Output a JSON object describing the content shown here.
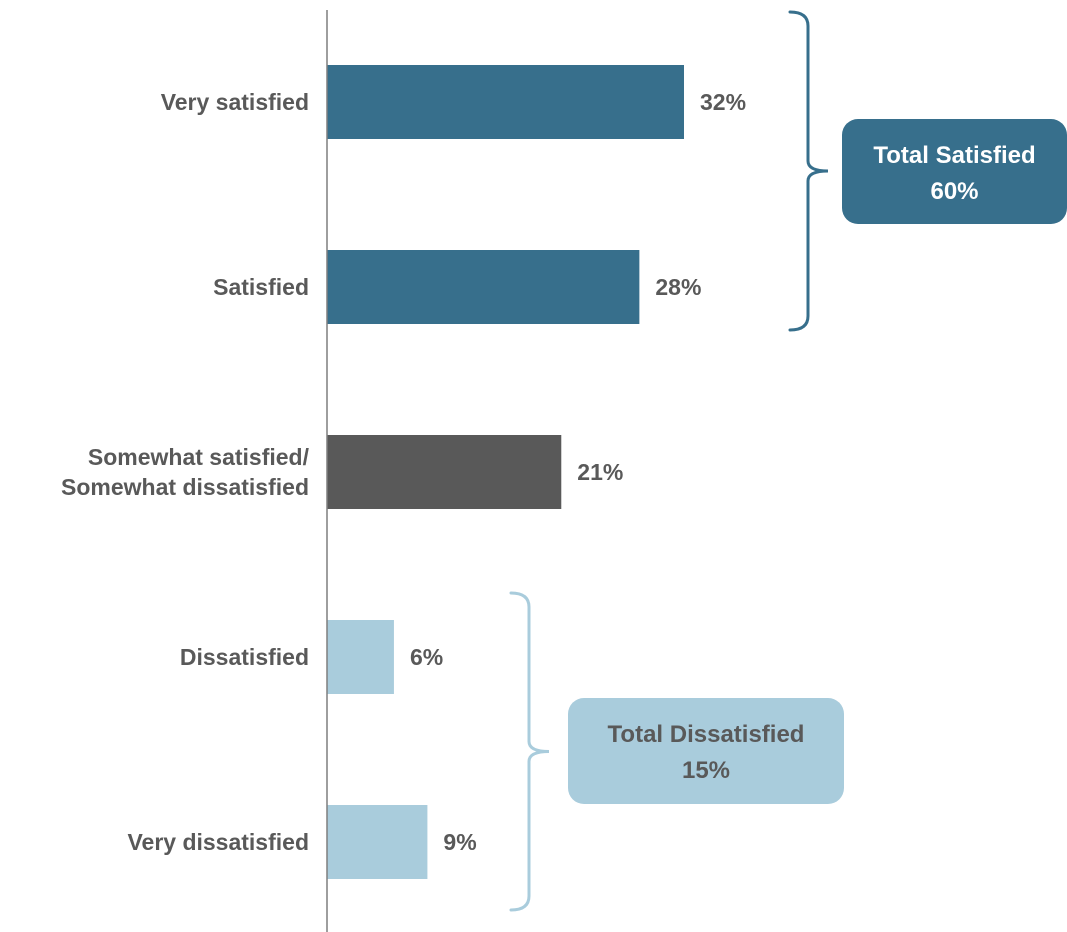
{
  "chart_data": {
    "type": "bar",
    "orientation": "horizontal",
    "categories": [
      [
        "Very satisfied"
      ],
      [
        "Satisfied"
      ],
      [
        "Somewhat satisfied/",
        "Somewhat dissatisfied"
      ],
      [
        "Dissatisfied"
      ],
      [
        "Very dissatisfied"
      ]
    ],
    "values": [
      32,
      28,
      21,
      6,
      9
    ],
    "value_labels": [
      "32%",
      "28%",
      "21%",
      "6%",
      "9%"
    ],
    "bar_colors": [
      "#376F8C",
      "#376F8C",
      "#595959",
      "#A9CCDC",
      "#A9CCDC"
    ],
    "xlim": [
      0,
      60
    ],
    "grid": false,
    "groups": [
      {
        "label_line1": "Total Satisfied",
        "label_line2": "60%",
        "spans": [
          0,
          1
        ],
        "color": "#376F8C",
        "text_color": "#ffffff"
      },
      {
        "label_line1": "Total Dissatisfied",
        "label_line2": "15%",
        "spans": [
          3,
          4
        ],
        "color": "#A9CCDC",
        "text_color": "#595959"
      }
    ]
  },
  "colors": {
    "axis": "#7f7f7f",
    "text": "#595959"
  }
}
